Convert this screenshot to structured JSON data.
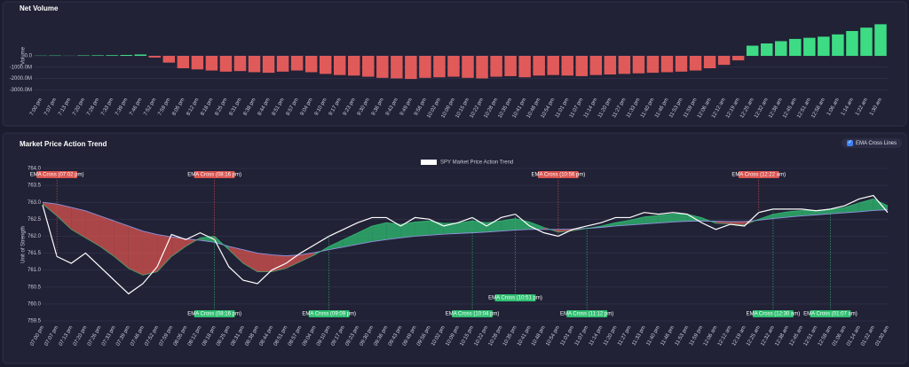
{
  "chart_data": [
    {
      "type": "bar",
      "title": "Net Volume",
      "ylabel": "Volume",
      "categories": [
        "7:00 pm",
        "7:07 pm",
        "7:13 pm",
        "7:20 pm",
        "7:26 pm",
        "7:33 pm",
        "7:39 pm",
        "7:46 pm",
        "7:52 pm",
        "7:59 pm",
        "8:05 pm",
        "8:12 pm",
        "8:18 pm",
        "8:25 pm",
        "8:31 pm",
        "8:38 pm",
        "8:44 pm",
        "8:51 pm",
        "8:57 pm",
        "9:04 pm",
        "9:10 pm",
        "9:17 pm",
        "9:23 pm",
        "9:30 pm",
        "9:36 pm",
        "9:43 pm",
        "9:49 pm",
        "9:56 pm",
        "10:02 pm",
        "10:09 pm",
        "10:15 pm",
        "10:22 pm",
        "10:28 pm",
        "10:35 pm",
        "10:41 pm",
        "10:48 pm",
        "10:54 pm",
        "11:01 pm",
        "11:07 pm",
        "11:14 pm",
        "11:20 pm",
        "11:27 pm",
        "11:33 pm",
        "11:40 pm",
        "11:46 pm",
        "11:53 pm",
        "11:59 pm",
        "12:06 am",
        "12:12 am",
        "12:19 am",
        "12:25 am",
        "12:32 am",
        "12:38 am",
        "12:45 am",
        "12:51 am",
        "12:58 am",
        "1:06 am",
        "1:14 am",
        "1:22 am",
        "1:30 am"
      ],
      "values": [
        20,
        30,
        10,
        40,
        50,
        60,
        80,
        120,
        -150,
        -600,
        -1100,
        -1200,
        -1300,
        -1400,
        -1350,
        -1450,
        -1500,
        -1400,
        -1300,
        -1450,
        -1600,
        -1700,
        -1750,
        -1850,
        -1950,
        -2000,
        -2050,
        -1950,
        -1900,
        -1850,
        -1950,
        -2000,
        -1850,
        -1800,
        -1900,
        -1750,
        -1700,
        -1750,
        -1800,
        -1700,
        -1650,
        -1600,
        -1550,
        -1500,
        -1450,
        -1400,
        -1300,
        -1100,
        -800,
        -400,
        900,
        1100,
        1300,
        1500,
        1600,
        1700,
        1900,
        2200,
        2500,
        2800
      ],
      "positive_color": "#3ddc84",
      "negative_color": "#e05a5a",
      "ylim": [
        -3300,
        3300
      ],
      "yticks": [
        {
          "value": 0,
          "label": "0.0"
        },
        {
          "value": -1000,
          "label": "-1000.0M"
        },
        {
          "value": -2000,
          "label": "-2000.0M"
        },
        {
          "value": -3000,
          "label": "-3000.0M"
        }
      ],
      "grid": true
    },
    {
      "type": "line",
      "title": "Market Price Action Trend",
      "ylabel": "Unit of Strength",
      "toggle": {
        "label": "EMA Cross Lines",
        "checked": true
      },
      "categories": [
        "07:00 pm",
        "07:07 pm",
        "07:13 pm",
        "07:20 pm",
        "07:26 pm",
        "07:33 pm",
        "07:39 pm",
        "07:46 pm",
        "07:52 pm",
        "07:59 pm",
        "08:05 pm",
        "08:12 pm",
        "08:18 pm",
        "08:25 pm",
        "08:31 pm",
        "08:38 pm",
        "08:44 pm",
        "08:51 pm",
        "08:57 pm",
        "09:04 pm",
        "09:10 pm",
        "09:17 pm",
        "09:23 pm",
        "09:30 pm",
        "09:36 pm",
        "09:43 pm",
        "09:49 pm",
        "09:56 pm",
        "10:02 pm",
        "10:09 pm",
        "10:15 pm",
        "10:22 pm",
        "10:28 pm",
        "10:35 pm",
        "10:41 pm",
        "10:48 pm",
        "10:54 pm",
        "11:01 pm",
        "11:07 pm",
        "11:14 pm",
        "11:20 pm",
        "11:27 pm",
        "11:33 pm",
        "11:40 pm",
        "11:46 pm",
        "11:53 pm",
        "11:59 pm",
        "12:06 am",
        "12:12 am",
        "12:19 am",
        "12:25 am",
        "12:32 am",
        "12:38 am",
        "12:45 am",
        "12:51 am",
        "12:58 am",
        "01:06 am",
        "01:14 am",
        "01:22 am",
        "01:30 am"
      ],
      "series": [
        {
          "name": "SPY Market Price Action Trend",
          "color": "#ffffff",
          "values": [
            762.92,
            761.4,
            761.2,
            761.5,
            761.1,
            760.7,
            760.3,
            760.6,
            761.1,
            762.05,
            761.9,
            762.1,
            761.9,
            761.1,
            760.7,
            760.6,
            761.0,
            761.2,
            761.5,
            761.75,
            762.0,
            762.2,
            762.4,
            762.55,
            762.55,
            762.3,
            762.55,
            762.5,
            762.3,
            762.4,
            762.55,
            762.3,
            762.55,
            762.65,
            762.3,
            762.1,
            762.0,
            762.2,
            762.3,
            762.4,
            762.55,
            762.55,
            762.7,
            762.65,
            762.7,
            762.65,
            762.4,
            762.2,
            762.35,
            762.3,
            762.7,
            762.8,
            762.8,
            762.8,
            762.75,
            762.8,
            762.9,
            763.1,
            763.2,
            762.7
          ]
        },
        {
          "color": "#3ddc84",
          "values": [
            762.95,
            762.6,
            762.2,
            761.95,
            761.7,
            761.4,
            761.05,
            760.85,
            760.95,
            761.4,
            761.7,
            761.95,
            762.0,
            761.6,
            761.2,
            760.95,
            760.95,
            761.05,
            761.25,
            761.45,
            761.7,
            761.9,
            762.1,
            762.3,
            762.4,
            762.35,
            762.42,
            762.45,
            762.38,
            762.39,
            762.45,
            762.4,
            762.45,
            762.52,
            762.42,
            762.26,
            762.12,
            762.16,
            762.23,
            762.3,
            762.4,
            762.47,
            762.57,
            762.61,
            762.66,
            762.65,
            762.55,
            762.38,
            762.36,
            762.33,
            762.5,
            762.65,
            762.72,
            762.76,
            762.76,
            762.78,
            762.85,
            762.98,
            763.1,
            762.9
          ]
        },
        {
          "color": "#8f93dd",
          "values": [
            763.0,
            762.95,
            762.85,
            762.75,
            762.6,
            762.45,
            762.3,
            762.15,
            762.05,
            761.98,
            761.92,
            761.88,
            761.82,
            761.7,
            761.6,
            761.5,
            761.45,
            761.42,
            761.45,
            761.52,
            761.6,
            761.68,
            761.76,
            761.84,
            761.9,
            761.95,
            762.0,
            762.03,
            762.06,
            762.08,
            762.1,
            762.12,
            762.15,
            762.18,
            762.2,
            762.2,
            762.2,
            762.21,
            762.23,
            762.26,
            762.3,
            762.33,
            762.36,
            762.39,
            762.42,
            762.44,
            762.45,
            762.44,
            762.43,
            762.43,
            762.47,
            762.52,
            762.56,
            762.6,
            762.63,
            762.66,
            762.69,
            762.72,
            762.76,
            762.78
          ]
        }
      ],
      "bull_fill": "#2fbf71",
      "bear_fill": "#d9534f",
      "annotations": [
        {
          "text": "EMA Cross (07:02 pm)",
          "x": "07:07 pm",
          "color": "#d9534f"
        },
        {
          "text": "EMA Cross (08:16 pm)",
          "x": "08:18 pm",
          "color": "#d9534f"
        },
        {
          "text": "EMA Cross (10:56 pm)",
          "x": "10:54 pm",
          "color": "#d9534f"
        },
        {
          "text": "EMA Cross (12:22 am)",
          "x": "12:25 am",
          "color": "#d9534f"
        },
        {
          "text": "EMA Cross (08:16 pm)",
          "x": "08:18 pm",
          "color": "#2fbf71"
        },
        {
          "text": "EMA Cross (09:09 pm)",
          "x": "09:10 pm",
          "color": "#2fbf71"
        },
        {
          "text": "EMA Cross (10:04 pm)",
          "x": "10:15 pm",
          "color": "#2fbf71"
        },
        {
          "text": "EMA Cross (10:51 pm)",
          "x": "10:35 pm",
          "color": "#2fbf71"
        },
        {
          "text": "EMA Cross (11:12 pm)",
          "x": "11:07 pm",
          "color": "#2fbf71"
        },
        {
          "text": "EMA Cross (12:30 am)",
          "x": "12:32 am",
          "color": "#2fbf71"
        },
        {
          "text": "EMA Cross (01:07 am)",
          "x": "12:58 am",
          "color": "#2fbf71"
        }
      ],
      "ylim": [
        759.5,
        764.0
      ],
      "yticks": [
        {
          "value": 759.5,
          "label": "759.5"
        },
        {
          "value": 760,
          "label": "760.0"
        },
        {
          "value": 760.5,
          "label": "760.5"
        },
        {
          "value": 761,
          "label": "761.0"
        },
        {
          "value": 761.5,
          "label": "761.5"
        },
        {
          "value": 762,
          "label": "762.0"
        },
        {
          "value": 762.5,
          "label": "762.5"
        },
        {
          "value": 763,
          "label": "763.0"
        },
        {
          "value": 763.5,
          "label": "763.5"
        },
        {
          "value": 764,
          "label": "764.0"
        }
      ],
      "grid": true
    }
  ]
}
